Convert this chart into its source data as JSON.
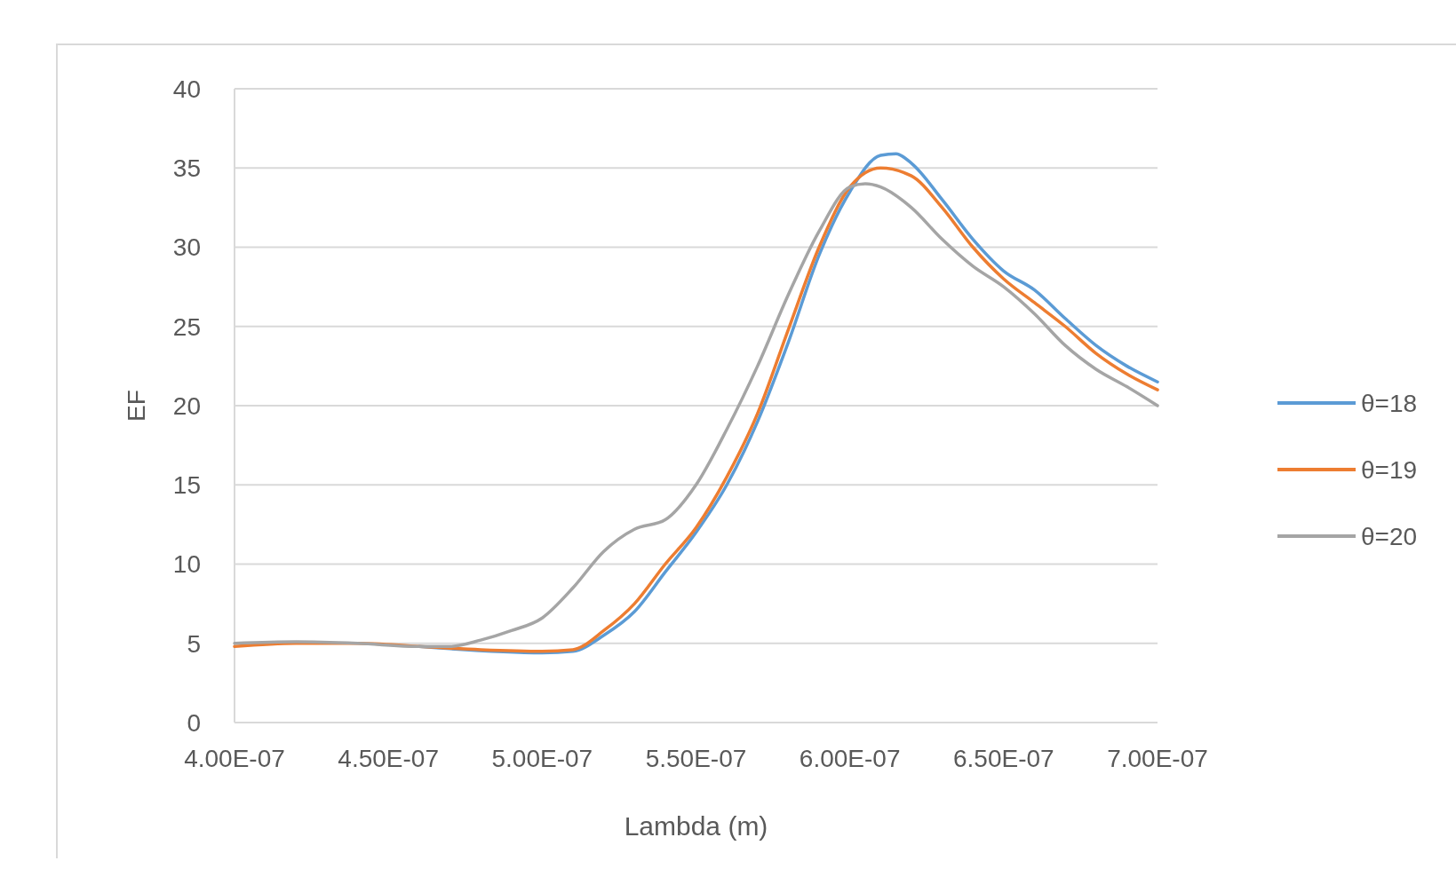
{
  "chart_data": {
    "type": "line",
    "xlabel": "Lambda (m)",
    "ylabel": "EF",
    "xlim": [
      4e-07,
      7e-07
    ],
    "xticks": [
      {
        "value": 4e-07,
        "label": "4.00E-07"
      },
      {
        "value": 4.5e-07,
        "label": "4.50E-07"
      },
      {
        "value": 5e-07,
        "label": "5.00E-07"
      },
      {
        "value": 5.5e-07,
        "label": "5.50E-07"
      },
      {
        "value": 6e-07,
        "label": "6.00E-07"
      },
      {
        "value": 6.5e-07,
        "label": "6.50E-07"
      },
      {
        "value": 7e-07,
        "label": "7.00E-07"
      }
    ],
    "ylim": [
      0,
      40
    ],
    "yticks": [
      0,
      5,
      10,
      15,
      20,
      25,
      30,
      35,
      40
    ],
    "grid": "y",
    "legend": "right",
    "marker": "none",
    "line_style": "solid",
    "series": [
      {
        "name": "θ=18",
        "color": "#5b9bd5",
        "x": [
          4.6e-07,
          5e-07,
          5.1e-07,
          5.2e-07,
          5.3e-07,
          5.4e-07,
          5.5e-07,
          5.6e-07,
          5.7e-07,
          5.8e-07,
          5.9e-07,
          6e-07,
          6.1e-07,
          6.15e-07,
          6.2e-07,
          6.3e-07,
          6.4e-07,
          6.5e-07,
          6.6e-07,
          6.7e-07,
          6.8e-07,
          6.9e-07,
          7e-07
        ],
        "values": [
          4.8,
          4.4,
          4.5,
          5.5,
          7.0,
          9.5,
          12.0,
          15.0,
          19.0,
          24.0,
          29.5,
          33.5,
          35.8,
          35.9,
          35.3,
          33.0,
          30.5,
          28.5,
          27.3,
          25.5,
          23.8,
          22.5,
          21.5
        ]
      },
      {
        "name": "θ=19",
        "color": "#ed7d31",
        "x": [
          4e-07,
          4.2e-07,
          4.4e-07,
          4.6e-07,
          4.8e-07,
          5e-07,
          5.1e-07,
          5.2e-07,
          5.3e-07,
          5.4e-07,
          5.5e-07,
          5.6e-07,
          5.7e-07,
          5.8e-07,
          5.9e-07,
          6e-07,
          6.1e-07,
          6.2e-07,
          6.3e-07,
          6.4e-07,
          6.5e-07,
          6.6e-07,
          6.7e-07,
          6.8e-07,
          6.9e-07,
          7e-07
        ],
        "values": [
          4.8,
          5.0,
          5.0,
          4.8,
          4.6,
          4.5,
          4.6,
          5.8,
          7.5,
          10.0,
          12.3,
          15.5,
          19.5,
          24.8,
          30.0,
          33.8,
          35.0,
          34.5,
          32.5,
          30.0,
          28.0,
          26.5,
          25.0,
          23.3,
          22.0,
          21.0
        ]
      },
      {
        "name": "θ=20",
        "color": "#a5a5a5",
        "x": [
          4e-07,
          4.2e-07,
          4.4e-07,
          4.6e-07,
          4.7e-07,
          4.8e-07,
          4.9e-07,
          5e-07,
          5.1e-07,
          5.2e-07,
          5.3e-07,
          5.4e-07,
          5.5e-07,
          5.6e-07,
          5.7e-07,
          5.8e-07,
          5.9e-07,
          6e-07,
          6.05e-07,
          6.1e-07,
          6.2e-07,
          6.3e-07,
          6.4e-07,
          6.5e-07,
          6.6e-07,
          6.7e-07,
          6.8e-07,
          6.9e-07,
          7e-07
        ],
        "values": [
          5.0,
          5.1,
          5.0,
          4.8,
          4.8,
          5.2,
          5.8,
          6.6,
          8.5,
          10.8,
          12.2,
          12.8,
          15.0,
          18.5,
          22.5,
          27.0,
          31.0,
          33.8,
          34.0,
          33.8,
          32.5,
          30.5,
          28.8,
          27.5,
          25.8,
          23.8,
          22.3,
          21.2,
          20.0
        ]
      }
    ]
  }
}
